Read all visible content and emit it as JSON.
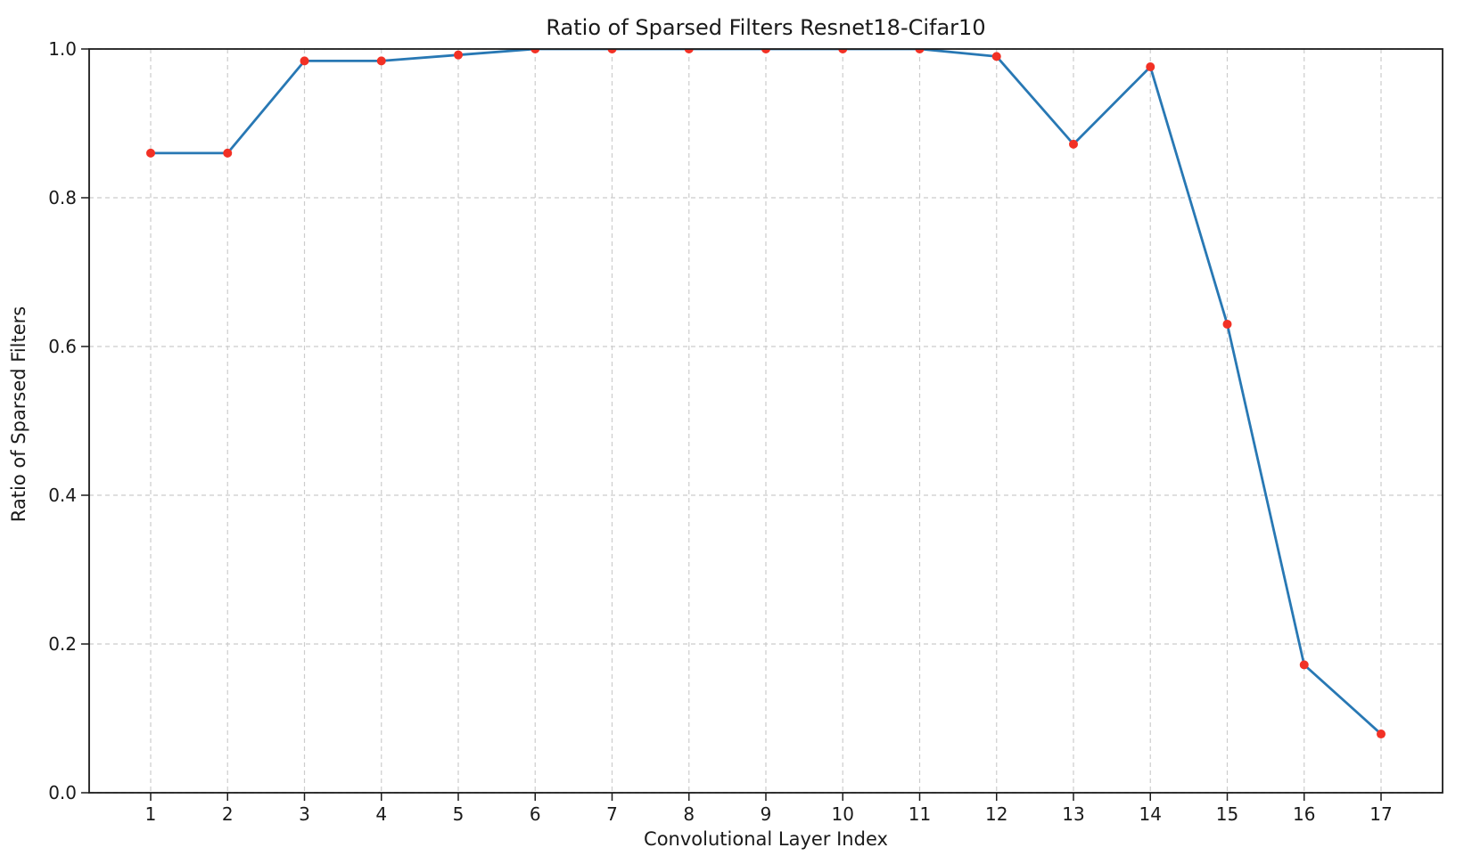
{
  "figure": {
    "background": "#ffffff"
  },
  "chart_data": {
    "type": "line",
    "title": "Ratio of Sparsed Filters Resnet18-Cifar10",
    "xlabel": "Convolutional Layer Index",
    "ylabel": "Ratio of Sparsed Filters",
    "x": [
      1,
      2,
      3,
      4,
      5,
      6,
      7,
      8,
      9,
      10,
      11,
      12,
      13,
      14,
      15,
      16,
      17
    ],
    "y": [
      0.86,
      0.86,
      0.984,
      0.984,
      0.992,
      1.0,
      1.0,
      1.0,
      1.0,
      1.0,
      1.0,
      0.99,
      0.872,
      0.976,
      0.63,
      0.172,
      0.079
    ],
    "x_tick_labels": [
      "1",
      "2",
      "3",
      "4",
      "5",
      "6",
      "7",
      "8",
      "9",
      "10",
      "11",
      "12",
      "13",
      "14",
      "15",
      "16",
      "17"
    ],
    "y_ticks": [
      0.0,
      0.2,
      0.4,
      0.6,
      0.8,
      1.0
    ],
    "y_tick_labels": [
      "0.0",
      "0.2",
      "0.4",
      "0.6",
      "0.8",
      "1.0"
    ],
    "xlim": [
      0.2,
      17.8
    ],
    "ylim": [
      0.0,
      1.0
    ],
    "grid": true,
    "grid_style": "dashed",
    "legend": "none",
    "line_color": "#2878b4",
    "marker_color": "#f23125",
    "grid_color": "#cccccc",
    "spine_color": "#1b1b1b",
    "line_width": 2.8,
    "marker_radius": 5
  }
}
